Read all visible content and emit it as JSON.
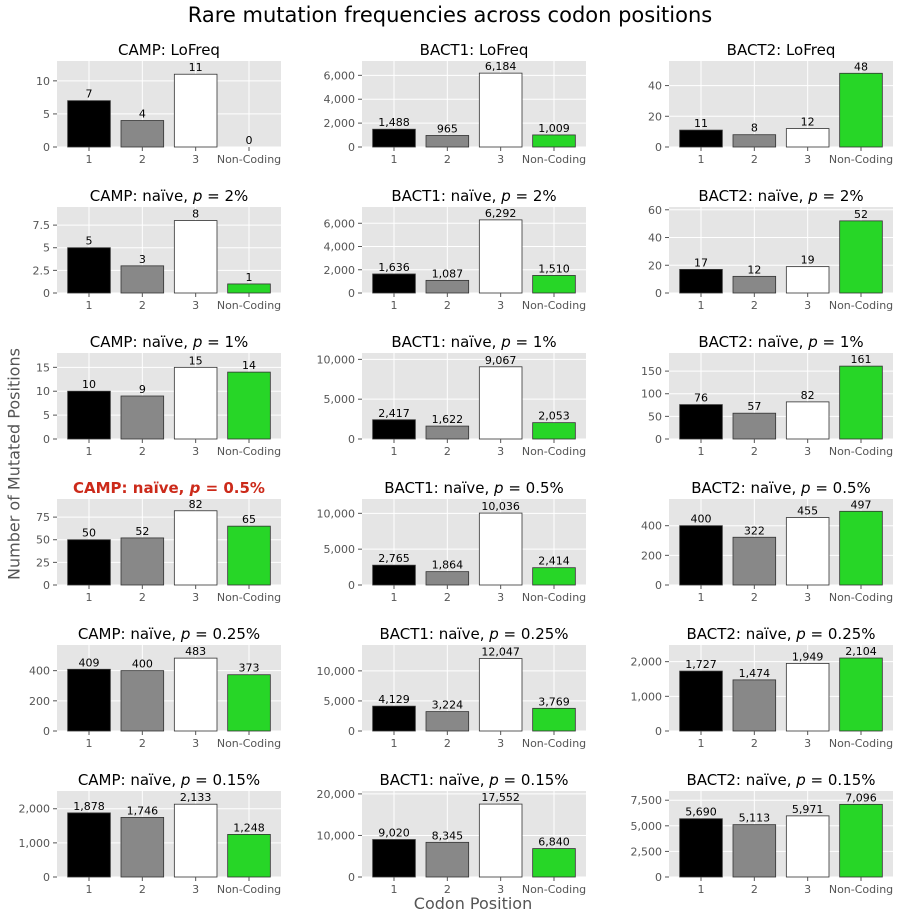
{
  "figure": {
    "title": "Rare mutation frequencies across codon positions",
    "ylabel": "Number of Mutated Positions",
    "xlabel": "Codon Position"
  },
  "colors": {
    "panel_background": "#e5e5e5",
    "grid": "#ffffff",
    "highlight_title": "#cc2a1a",
    "bar_1": "#000000",
    "bar_2": "#888888",
    "bar_3": "#ffffff",
    "bar_non_coding": "#27d627"
  },
  "chart_data": [
    {
      "type": "bar",
      "title": "CAMP: LoFreq",
      "categories": [
        "1",
        "2",
        "3",
        "Non-Coding"
      ],
      "values": [
        7,
        4,
        11,
        0
      ],
      "ylim": [
        0,
        13
      ],
      "yticks": [
        0,
        5,
        10
      ],
      "ytick_labels": [
        "0",
        "5",
        "10"
      ],
      "highlight": false
    },
    {
      "type": "bar",
      "title": "BACT1: LoFreq",
      "categories": [
        "1",
        "2",
        "3",
        "Non-Coding"
      ],
      "values": [
        1488,
        965,
        6184,
        1009
      ],
      "ylim": [
        0,
        7200
      ],
      "yticks": [
        0,
        2000,
        4000,
        6000
      ],
      "ytick_labels": [
        "0",
        "2,000",
        "4,000",
        "6,000"
      ],
      "highlight": false
    },
    {
      "type": "bar",
      "title": "BACT2: LoFreq",
      "categories": [
        "1",
        "2",
        "3",
        "Non-Coding"
      ],
      "values": [
        11,
        8,
        12,
        48
      ],
      "ylim": [
        0,
        56
      ],
      "yticks": [
        0,
        20,
        40
      ],
      "ytick_labels": [
        "0",
        "20",
        "40"
      ],
      "highlight": false
    },
    {
      "type": "bar",
      "title": "CAMP: naïve, p = 2%",
      "title_parts": [
        "CAMP: naïve, ",
        "p",
        " = 2%"
      ],
      "categories": [
        "1",
        "2",
        "3",
        "Non-Coding"
      ],
      "values": [
        5,
        3,
        8,
        1
      ],
      "ylim": [
        0,
        9.5
      ],
      "yticks": [
        0,
        2.5,
        5,
        7.5
      ],
      "ytick_labels": [
        "0",
        "2.5",
        "5",
        "7.5"
      ],
      "highlight": false
    },
    {
      "type": "bar",
      "title": "BACT1: naïve, p = 2%",
      "title_parts": [
        "BACT1: naïve, ",
        "p",
        " = 2%"
      ],
      "categories": [
        "1",
        "2",
        "3",
        "Non-Coding"
      ],
      "values": [
        1636,
        1087,
        6292,
        1510
      ],
      "ylim": [
        0,
        7400
      ],
      "yticks": [
        0,
        2000,
        4000,
        6000
      ],
      "ytick_labels": [
        "0",
        "2,000",
        "4,000",
        "6,000"
      ],
      "highlight": false
    },
    {
      "type": "bar",
      "title": "BACT2: naïve, p = 2%",
      "title_parts": [
        "BACT2: naïve, ",
        "p",
        " = 2%"
      ],
      "categories": [
        "1",
        "2",
        "3",
        "Non-Coding"
      ],
      "values": [
        17,
        12,
        19,
        52
      ],
      "ylim": [
        0,
        62
      ],
      "yticks": [
        0,
        20,
        40,
        60
      ],
      "ytick_labels": [
        "0",
        "20",
        "40",
        "60"
      ],
      "highlight": false
    },
    {
      "type": "bar",
      "title": "CAMP: naïve, p = 1%",
      "title_parts": [
        "CAMP: naïve, ",
        "p",
        " = 1%"
      ],
      "categories": [
        "1",
        "2",
        "3",
        "Non-Coding"
      ],
      "values": [
        10,
        9,
        15,
        14
      ],
      "ylim": [
        0,
        18
      ],
      "yticks": [
        0,
        5,
        10,
        15
      ],
      "ytick_labels": [
        "0",
        "5",
        "10",
        "15"
      ],
      "highlight": false
    },
    {
      "type": "bar",
      "title": "BACT1: naïve, p = 1%",
      "title_parts": [
        "BACT1: naïve, ",
        "p",
        " = 1%"
      ],
      "categories": [
        "1",
        "2",
        "3",
        "Non-Coding"
      ],
      "values": [
        2417,
        1622,
        9067,
        2053
      ],
      "ylim": [
        0,
        10800
      ],
      "yticks": [
        0,
        5000,
        10000
      ],
      "ytick_labels": [
        "0",
        "5,000",
        "10,000"
      ],
      "highlight": false
    },
    {
      "type": "bar",
      "title": "BACT2: naïve, p = 1%",
      "title_parts": [
        "BACT2: naïve, ",
        "p",
        " = 1%"
      ],
      "categories": [
        "1",
        "2",
        "3",
        "Non-Coding"
      ],
      "values": [
        76,
        57,
        82,
        161
      ],
      "ylim": [
        0,
        190
      ],
      "yticks": [
        0,
        50,
        100,
        150
      ],
      "ytick_labels": [
        "0",
        "50",
        "100",
        "150"
      ],
      "highlight": false
    },
    {
      "type": "bar",
      "title": "CAMP: naïve, p = 0.5%",
      "title_parts": [
        "CAMP: naïve, ",
        "p",
        " = 0.5%"
      ],
      "categories": [
        "1",
        "2",
        "3",
        "Non-Coding"
      ],
      "values": [
        50,
        52,
        82,
        65
      ],
      "ylim": [
        0,
        95
      ],
      "yticks": [
        0,
        25,
        50,
        75
      ],
      "ytick_labels": [
        "0",
        "25",
        "50",
        "75"
      ],
      "highlight": true
    },
    {
      "type": "bar",
      "title": "BACT1: naïve, p = 0.5%",
      "title_parts": [
        "BACT1: naïve, ",
        "p",
        " = 0.5%"
      ],
      "categories": [
        "1",
        "2",
        "3",
        "Non-Coding"
      ],
      "values": [
        2765,
        1864,
        10036,
        2414
      ],
      "ylim": [
        0,
        12000
      ],
      "yticks": [
        0,
        5000,
        10000
      ],
      "ytick_labels": [
        "0",
        "5,000",
        "10,000"
      ],
      "highlight": false
    },
    {
      "type": "bar",
      "title": "BACT2: naïve, p = 0.5%",
      "title_parts": [
        "BACT2: naïve, ",
        "p",
        " = 0.5%"
      ],
      "categories": [
        "1",
        "2",
        "3",
        "Non-Coding"
      ],
      "values": [
        400,
        322,
        455,
        497
      ],
      "ylim": [
        0,
        580
      ],
      "yticks": [
        0,
        200,
        400
      ],
      "ytick_labels": [
        "0",
        "200",
        "400"
      ],
      "highlight": false
    },
    {
      "type": "bar",
      "title": "CAMP: naïve, p = 0.25%",
      "title_parts": [
        "CAMP: naïve, ",
        "p",
        " = 0.25%"
      ],
      "categories": [
        "1",
        "2",
        "3",
        "Non-Coding"
      ],
      "values": [
        409,
        400,
        483,
        373
      ],
      "ylim": [
        0,
        570
      ],
      "yticks": [
        0,
        200,
        400
      ],
      "ytick_labels": [
        "0",
        "200",
        "400"
      ],
      "highlight": false
    },
    {
      "type": "bar",
      "title": "BACT1: naïve, p = 0.25%",
      "title_parts": [
        "BACT1: naïve, ",
        "p",
        " = 0.25%"
      ],
      "categories": [
        "1",
        "2",
        "3",
        "Non-Coding"
      ],
      "values": [
        4129,
        3224,
        12047,
        3769
      ],
      "ylim": [
        0,
        14300
      ],
      "yticks": [
        0,
        5000,
        10000
      ],
      "ytick_labels": [
        "0",
        "5,000",
        "10,000"
      ],
      "highlight": false
    },
    {
      "type": "bar",
      "title": "BACT2: naïve, p = 0.25%",
      "title_parts": [
        "BACT2: naïve, ",
        "p",
        " = 0.25%"
      ],
      "categories": [
        "1",
        "2",
        "3",
        "Non-Coding"
      ],
      "values": [
        1727,
        1474,
        1949,
        2104
      ],
      "ylim": [
        0,
        2480
      ],
      "yticks": [
        0,
        1000,
        2000
      ],
      "ytick_labels": [
        "0",
        "1,000",
        "2,000"
      ],
      "highlight": false
    },
    {
      "type": "bar",
      "title": "CAMP: naïve, p = 0.15%",
      "title_parts": [
        "CAMP: naïve, ",
        "p",
        " = 0.15%"
      ],
      "categories": [
        "1",
        "2",
        "3",
        "Non-Coding"
      ],
      "values": [
        1878,
        1746,
        2133,
        1248
      ],
      "ylim": [
        0,
        2520
      ],
      "yticks": [
        0,
        1000,
        2000
      ],
      "ytick_labels": [
        "0",
        "1,000",
        "2,000"
      ],
      "highlight": false
    },
    {
      "type": "bar",
      "title": "BACT1: naïve, p = 0.15%",
      "title_parts": [
        "BACT1: naïve, ",
        "p",
        " = 0.15%"
      ],
      "categories": [
        "1",
        "2",
        "3",
        "Non-Coding"
      ],
      "values": [
        9020,
        8345,
        17552,
        6840
      ],
      "ylim": [
        0,
        20700
      ],
      "yticks": [
        0,
        10000,
        20000
      ],
      "ytick_labels": [
        "0",
        "10,000",
        "20,000"
      ],
      "highlight": false
    },
    {
      "type": "bar",
      "title": "BACT2: naïve, p = 0.15%",
      "title_parts": [
        "BACT2: naïve, ",
        "p",
        " = 0.15%"
      ],
      "categories": [
        "1",
        "2",
        "3",
        "Non-Coding"
      ],
      "values": [
        5690,
        5113,
        5971,
        7096
      ],
      "ylim": [
        0,
        8400
      ],
      "yticks": [
        0,
        2500,
        5000,
        7500
      ],
      "ytick_labels": [
        "0",
        "2,500",
        "5,000",
        "7,500"
      ],
      "highlight": false
    }
  ]
}
